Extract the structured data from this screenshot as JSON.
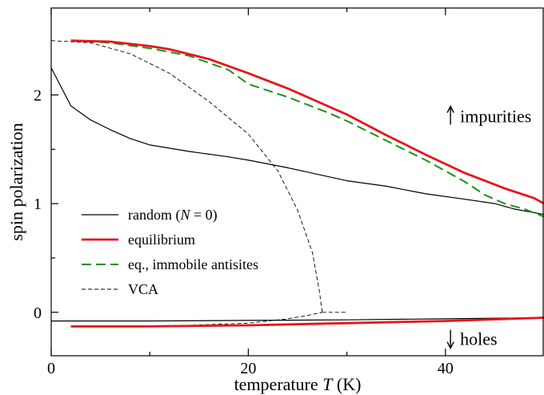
{
  "chart_data": {
    "type": "line",
    "title": "",
    "xlabel": "temperature T (K)",
    "xlabel_parts": [
      "temperature ",
      "T",
      " (K)"
    ],
    "ylabel": "spin polarization",
    "xlim": [
      0,
      50
    ],
    "ylim": [
      -0.4,
      2.8
    ],
    "x_ticks": [
      0,
      20,
      40
    ],
    "y_ticks": [
      0,
      1,
      2
    ],
    "x_minor_ticks": [
      10,
      30
    ],
    "y_minor_ticks": [
      0.5,
      1.5
    ],
    "legend_position": "lower-left",
    "annotations": [
      {
        "arrow": "up",
        "text": "impurities",
        "x": 41,
        "y": 1.8
      },
      {
        "arrow": "down",
        "text": "holes",
        "x": 41,
        "y": -0.25
      }
    ],
    "series": [
      {
        "name": "random (N = 0)",
        "legend_parts": [
          "random (",
          "N",
          " = 0)"
        ],
        "color": "#000000",
        "style": "solid",
        "width": 1.2,
        "branches": [
          [
            [
              0,
              2.25
            ],
            [
              2,
              1.9
            ],
            [
              4,
              1.77
            ],
            [
              6,
              1.68
            ],
            [
              8,
              1.6
            ],
            [
              10,
              1.54
            ],
            [
              14,
              1.48
            ],
            [
              18,
              1.43
            ],
            [
              20,
              1.4
            ],
            [
              24,
              1.33
            ],
            [
              28,
              1.25
            ],
            [
              30,
              1.21
            ],
            [
              34,
              1.16
            ],
            [
              38,
              1.09
            ],
            [
              42,
              1.04
            ],
            [
              45,
              1.0
            ],
            [
              47,
              0.95
            ],
            [
              50,
              0.9
            ]
          ],
          [
            [
              0,
              -0.08
            ],
            [
              10,
              -0.08
            ],
            [
              20,
              -0.075
            ],
            [
              30,
              -0.07
            ],
            [
              40,
              -0.06
            ],
            [
              50,
              -0.05
            ]
          ]
        ]
      },
      {
        "name": "equilibrium",
        "legend_parts": [
          "equilibrium"
        ],
        "color": "#e8141c",
        "style": "solid",
        "width": 2.8,
        "branches": [
          [
            [
              2,
              2.5
            ],
            [
              6,
              2.49
            ],
            [
              10,
              2.45
            ],
            [
              12,
              2.42
            ],
            [
              16,
              2.33
            ],
            [
              20,
              2.2
            ],
            [
              24,
              2.06
            ],
            [
              28,
              1.9
            ],
            [
              30,
              1.82
            ],
            [
              34,
              1.63
            ],
            [
              38,
              1.45
            ],
            [
              42,
              1.28
            ],
            [
              46,
              1.14
            ],
            [
              49,
              1.05
            ],
            [
              50,
              1.0
            ]
          ],
          [
            [
              2,
              -0.13
            ],
            [
              10,
              -0.13
            ],
            [
              20,
              -0.12
            ],
            [
              30,
              -0.1
            ],
            [
              40,
              -0.08
            ],
            [
              50,
              -0.05
            ]
          ]
        ]
      },
      {
        "name": "eq., immobile antisites",
        "legend_parts": [
          "eq., immobile antisites"
        ],
        "color": "#149614",
        "style": "dashed",
        "width": 2.0,
        "branches": [
          [
            [
              2,
              2.5
            ],
            [
              6,
              2.48
            ],
            [
              10,
              2.43
            ],
            [
              14,
              2.36
            ],
            [
              18,
              2.23
            ],
            [
              20,
              2.1
            ],
            [
              24,
              1.98
            ],
            [
              28,
              1.84
            ],
            [
              30,
              1.76
            ],
            [
              34,
              1.58
            ],
            [
              38,
              1.4
            ],
            [
              42,
              1.2
            ],
            [
              44,
              1.08
            ],
            [
              46,
              1.0
            ],
            [
              48,
              0.95
            ],
            [
              50,
              0.88
            ]
          ],
          [
            [
              2,
              -0.13
            ],
            [
              10,
              -0.13
            ],
            [
              20,
              -0.12
            ],
            [
              30,
              -0.1
            ],
            [
              40,
              -0.08
            ],
            [
              50,
              -0.05
            ]
          ]
        ]
      },
      {
        "name": "VCA",
        "legend_parts": [
          "VCA"
        ],
        "color": "#000000",
        "style": "thin-dashed",
        "width": 0.9,
        "branches": [
          [
            [
              0,
              2.5
            ],
            [
              4,
              2.48
            ],
            [
              8,
              2.38
            ],
            [
              12,
              2.2
            ],
            [
              16,
              1.94
            ],
            [
              20,
              1.64
            ],
            [
              23,
              1.3
            ],
            [
              25,
              0.94
            ],
            [
              26.5,
              0.55
            ],
            [
              27.2,
              0.2
            ],
            [
              27.5,
              0.0
            ]
          ],
          [
            [
              27.5,
              0.0
            ],
            [
              30,
              0.0
            ]
          ],
          [
            [
              2,
              -0.13
            ],
            [
              14,
              -0.12
            ],
            [
              20,
              -0.1
            ],
            [
              24,
              -0.06
            ],
            [
              26,
              -0.03
            ],
            [
              27.5,
              0.0
            ]
          ]
        ]
      }
    ]
  }
}
